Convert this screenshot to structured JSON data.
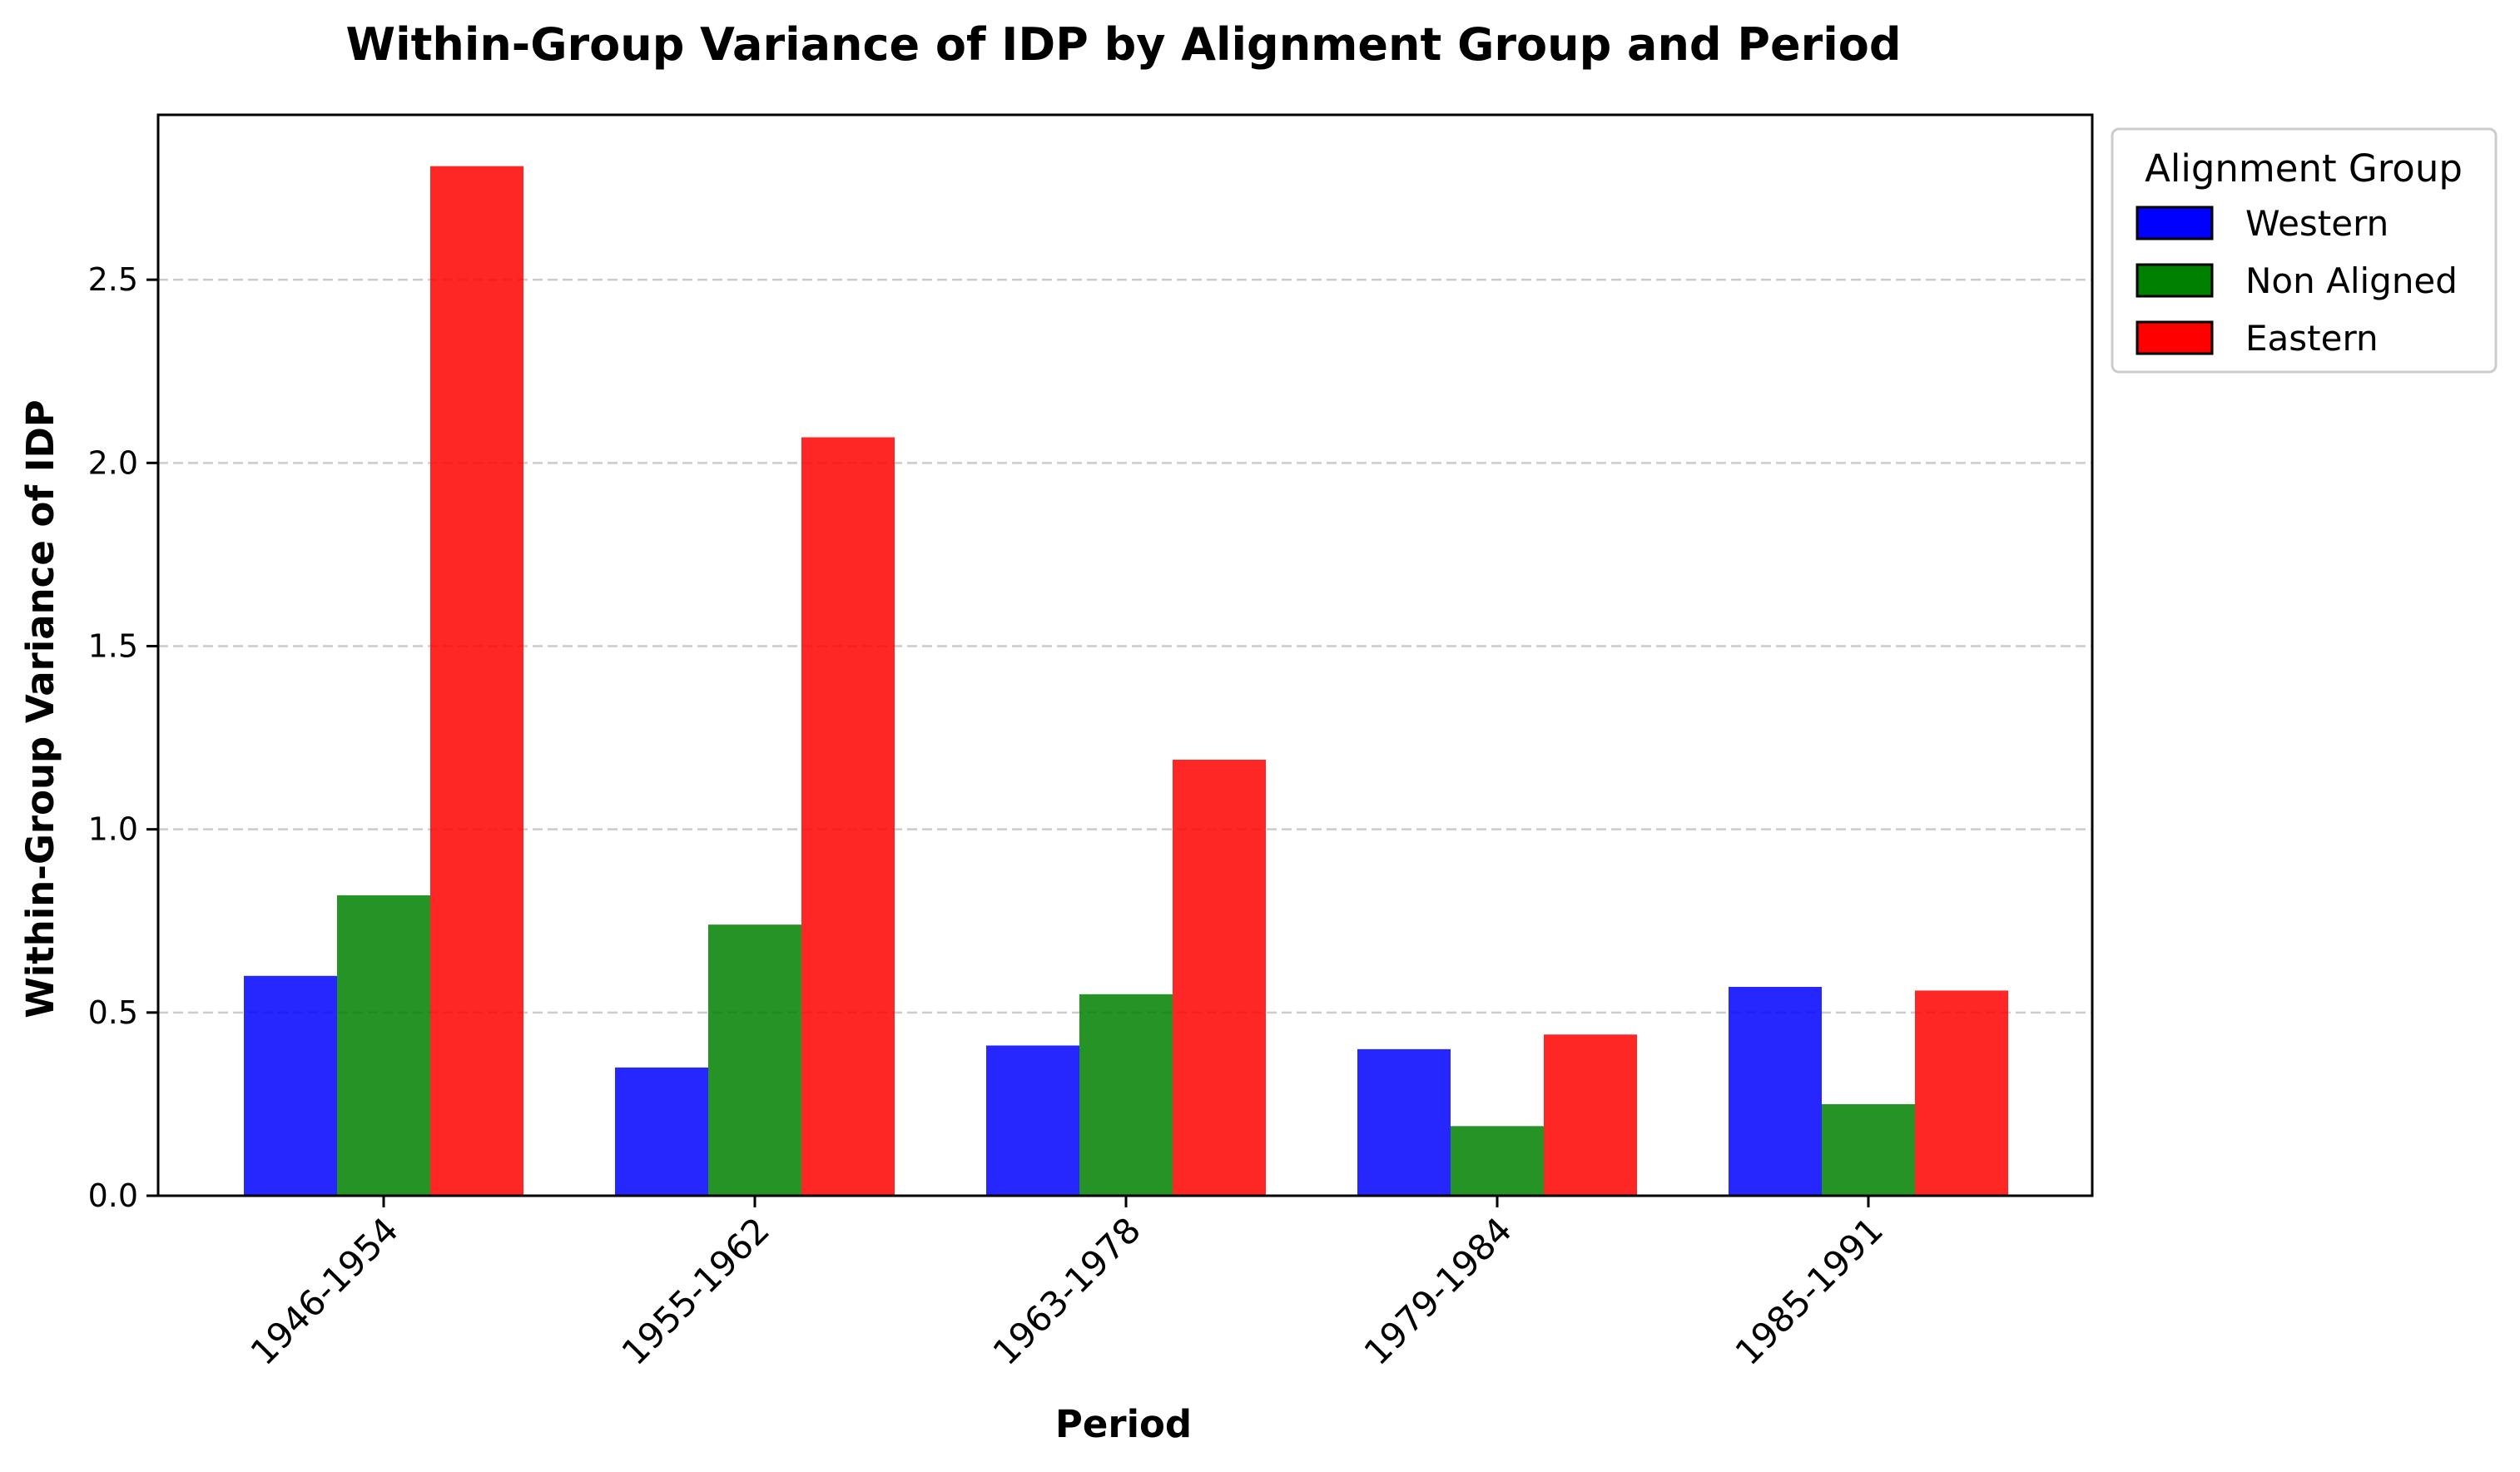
{
  "chart_data": {
    "type": "bar",
    "title": "Within-Group Variance of IDP by Alignment Group and Period",
    "xlabel": "Period",
    "ylabel": "Within-Group Variance of IDP",
    "categories": [
      "1946-1954",
      "1955-1962",
      "1963-1978",
      "1979-1984",
      "1985-1991"
    ],
    "series": [
      {
        "name": "Western",
        "color": "#0000ff",
        "values": [
          0.6,
          0.35,
          0.41,
          0.4,
          0.57
        ]
      },
      {
        "name": "Non Aligned",
        "color": "#008000",
        "values": [
          0.82,
          0.74,
          0.55,
          0.19,
          0.25
        ]
      },
      {
        "name": "Eastern",
        "color": "#ff0000",
        "values": [
          2.81,
          2.07,
          1.19,
          0.44,
          0.56
        ]
      }
    ],
    "ylim": [
      0,
      2.95
    ],
    "yticks": [
      "0.0",
      "0.5",
      "1.0",
      "1.5",
      "2.0",
      "2.5"
    ],
    "grid": "y-dashed",
    "legend": {
      "title": "Alignment Group",
      "placement": "outside-top-right"
    }
  }
}
